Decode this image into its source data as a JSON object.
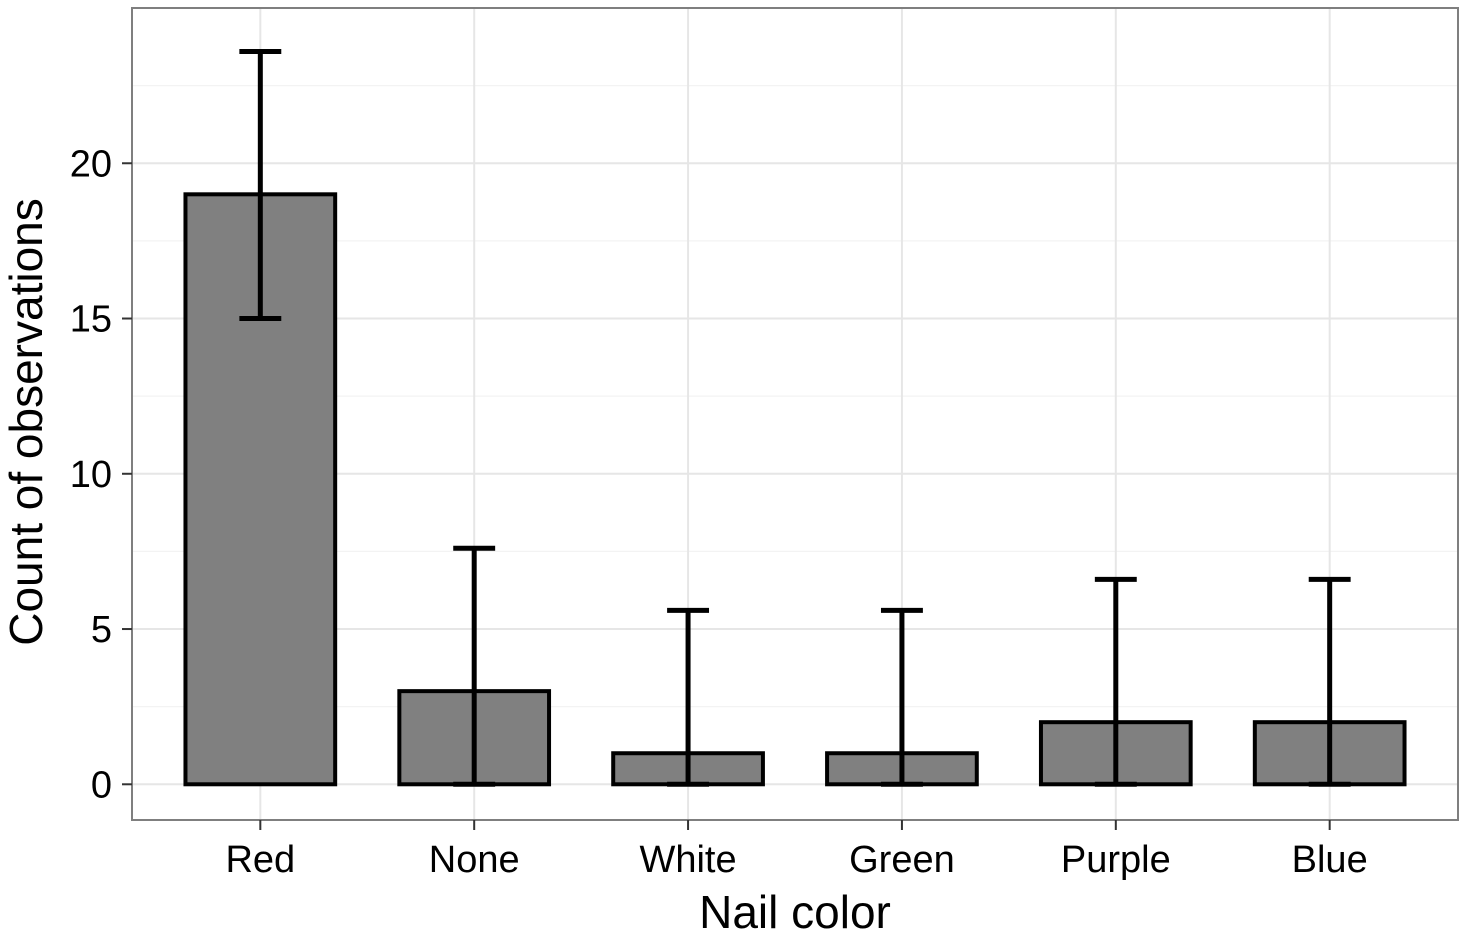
{
  "chart_data": {
    "type": "bar",
    "title": "",
    "xlabel": "Nail color",
    "ylabel": "Count of observations",
    "categories": [
      "Red",
      "None",
      "White",
      "Green",
      "Purple",
      "Blue"
    ],
    "values": [
      19,
      3,
      1,
      1,
      2,
      2
    ],
    "error_bars": {
      "lower": [
        15,
        0,
        0,
        0,
        0,
        0
      ],
      "upper": [
        23.6,
        7.6,
        5.6,
        5.6,
        6.6,
        6.6
      ]
    },
    "ylim": [
      -1.15,
      25
    ],
    "yticks": [
      0,
      5,
      10,
      15,
      20
    ],
    "ytick_labels": [
      "0",
      "5",
      "10",
      "15",
      "20"
    ],
    "grid": true,
    "legend": "none",
    "colors": {
      "bar_fill": "#808080",
      "bar_stroke": "#000000",
      "error_bar": "#000000",
      "grid_major": "#e6e6e6",
      "grid_minor": "#f3f3f3",
      "panel_border": "#7f7f7f",
      "background": "#ffffff"
    }
  }
}
